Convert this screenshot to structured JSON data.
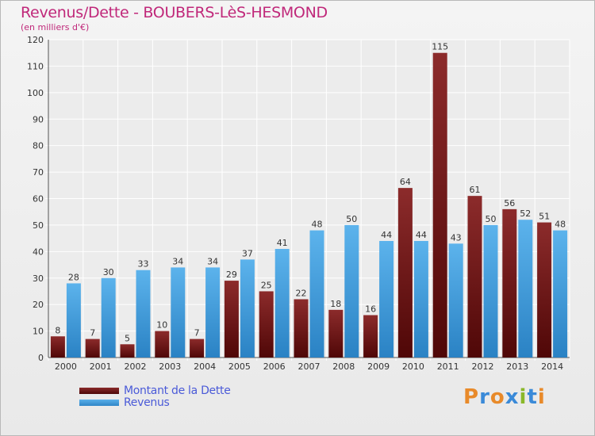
{
  "header": {
    "title": "Revenus/Dette - BOUBERS-LèS-HESMOND",
    "subtitle": "(en milliers d'€)"
  },
  "legend": {
    "debt_label": "Montant de la Dette",
    "revenue_label": "Revenus"
  },
  "logo": {
    "letters": [
      "P",
      "r",
      "o",
      "x",
      "i",
      "t",
      "i"
    ]
  },
  "colors": {
    "debt": "#7a1d1d",
    "revenue": "#46a0e0",
    "title": "#c0287a",
    "legend_text": "#4a5ad8"
  },
  "chart_data": {
    "type": "bar",
    "title": "Revenus/Dette - BOUBERS-LèS-HESMOND",
    "ylabel": "(en milliers d'€)",
    "xlabel": "",
    "categories": [
      "2000",
      "2001",
      "2002",
      "2003",
      "2004",
      "2005",
      "2006",
      "2007",
      "2008",
      "2009",
      "2010",
      "2011",
      "2012",
      "2013",
      "2014"
    ],
    "series": [
      {
        "name": "Montant de la Dette",
        "values": [
          8,
          7,
          5,
          10,
          7,
          29,
          25,
          22,
          18,
          16,
          64,
          115,
          61,
          56,
          51
        ]
      },
      {
        "name": "Revenus",
        "values": [
          28,
          30,
          33,
          34,
          34,
          37,
          41,
          48,
          50,
          44,
          44,
          43,
          50,
          52,
          48
        ]
      }
    ],
    "ylim": [
      0,
      120
    ],
    "yticks": [
      0,
      10,
      20,
      30,
      40,
      50,
      60,
      70,
      80,
      90,
      100,
      110,
      120
    ],
    "grid": true,
    "legend_position": "bottom-left"
  }
}
